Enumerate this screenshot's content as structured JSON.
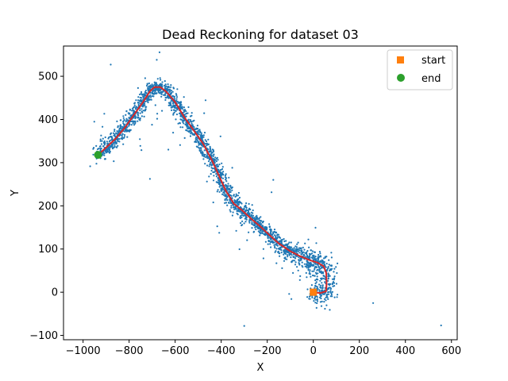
{
  "chart_data": {
    "type": "scatter",
    "title": "Dead Reckoning for dataset 03",
    "xlabel": "X",
    "ylabel": "Y",
    "xlim": [
      -1085,
      625
    ],
    "ylim": [
      -110,
      570
    ],
    "xticks": [
      -1000,
      -800,
      -600,
      -400,
      -200,
      0,
      200,
      400,
      600
    ],
    "yticks": [
      -100,
      0,
      100,
      200,
      300,
      400,
      500
    ],
    "grid": false,
    "legend_position": "top-right",
    "legend": [
      {
        "label": "start",
        "marker": "square",
        "color": "#ff7f0e"
      },
      {
        "label": "end",
        "marker": "circle",
        "color": "#2ca02c"
      }
    ],
    "trajectory": {
      "color": "#d62728",
      "points": [
        [
          0,
          0
        ],
        [
          30,
          -2
        ],
        [
          55,
          2
        ],
        [
          58,
          20
        ],
        [
          56,
          45
        ],
        [
          45,
          60
        ],
        [
          20,
          68
        ],
        [
          -20,
          75
        ],
        [
          -60,
          84
        ],
        [
          -100,
          95
        ],
        [
          -150,
          113
        ],
        [
          -190,
          132
        ],
        [
          -230,
          152
        ],
        [
          -270,
          170
        ],
        [
          -310,
          190
        ],
        [
          -345,
          205
        ],
        [
          -380,
          235
        ],
        [
          -410,
          270
        ],
        [
          -440,
          305
        ],
        [
          -480,
          345
        ],
        [
          -520,
          375
        ],
        [
          -560,
          405
        ],
        [
          -600,
          440
        ],
        [
          -640,
          465
        ],
        [
          -665,
          475
        ],
        [
          -690,
          475
        ],
        [
          -710,
          465
        ],
        [
          -740,
          440
        ],
        [
          -780,
          410
        ],
        [
          -820,
          380
        ],
        [
          -860,
          355
        ],
        [
          -900,
          335
        ],
        [
          -935,
          318
        ]
      ]
    },
    "scatter": {
      "color": "#1f77b4",
      "note": "noisy estimates scattered around the trajectory"
    },
    "start": {
      "x": 0,
      "y": 0,
      "color": "#ff7f0e"
    },
    "end": {
      "x": -935,
      "y": 318,
      "color": "#2ca02c"
    }
  }
}
